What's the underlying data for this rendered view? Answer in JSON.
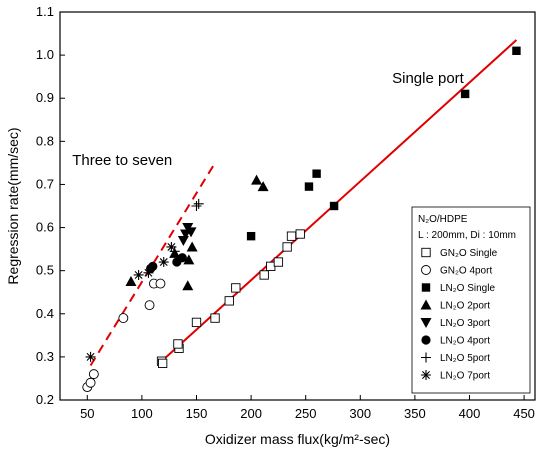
{
  "chart_data": {
    "type": "scatter",
    "xlabel": "Oxidizer mass flux(kg/m²-sec)",
    "ylabel": "Regression rate(mm/sec)",
    "xlim": [
      25,
      460
    ],
    "ylim": [
      0.2,
      1.1
    ],
    "xticks": [
      "50",
      "100",
      "150",
      "200",
      "250",
      "300",
      "350",
      "400",
      "450"
    ],
    "yticks": [
      "0.2",
      "0.3",
      "0.4",
      "0.5",
      "0.6",
      "0.7",
      "0.8",
      "0.9",
      "1.0",
      "1.1"
    ],
    "legend": {
      "title_line1": "N₂O/HDPE",
      "title_line2": "L : 200mm, Di : 10mm",
      "placement": "right"
    },
    "annotations": [
      {
        "text": "Single port",
        "x": 362,
        "y": 0.935
      },
      {
        "text": "Three to seven",
        "x": 82,
        "y": 0.745
      }
    ],
    "fit_lines": [
      {
        "name": "single-port-fit",
        "style": "solid",
        "color": "#e00000",
        "x": [
          118,
          443
        ],
        "y": [
          0.29,
          1.035
        ]
      },
      {
        "name": "three-to-seven-fit",
        "style": "dashed",
        "color": "#e00000",
        "x": [
          53,
          167
        ],
        "y": [
          0.28,
          0.75
        ]
      }
    ],
    "series": [
      {
        "name": "GN₂O Single",
        "marker": "open-square",
        "x": [
          118,
          134,
          150,
          167,
          180,
          186,
          212,
          218,
          225,
          233,
          237,
          245,
          133,
          119
        ],
        "y": [
          0.29,
          0.32,
          0.38,
          0.39,
          0.43,
          0.46,
          0.49,
          0.51,
          0.52,
          0.555,
          0.58,
          0.585,
          0.33,
          0.285
        ]
      },
      {
        "name": "GN₂O 4port",
        "marker": "open-circle",
        "x": [
          50,
          53,
          56,
          83,
          107,
          111,
          117
        ],
        "y": [
          0.23,
          0.24,
          0.26,
          0.39,
          0.42,
          0.47,
          0.47
        ]
      },
      {
        "name": "LN₂O Single",
        "marker": "filled-square",
        "x": [
          200,
          253,
          260,
          276,
          396,
          443
        ],
        "y": [
          0.58,
          0.695,
          0.725,
          0.65,
          0.91,
          1.01
        ]
      },
      {
        "name": "LN₂O 2port",
        "marker": "filled-triangle-up",
        "x": [
          90,
          130,
          142,
          143,
          146,
          205,
          211
        ],
        "y": [
          0.475,
          0.54,
          0.465,
          0.525,
          0.555,
          0.71,
          0.695
        ]
      },
      {
        "name": "LN₂O 3port",
        "marker": "filled-triangle-down",
        "x": [
          138,
          140,
          142,
          145
        ],
        "y": [
          0.57,
          0.585,
          0.6,
          0.59
        ]
      },
      {
        "name": "LN₂O 4port",
        "marker": "filled-circle",
        "x": [
          108,
          110,
          132,
          137
        ],
        "y": [
          0.505,
          0.51,
          0.52,
          0.53
        ]
      },
      {
        "name": "LN₂O 5port",
        "marker": "plus",
        "x": [
          130,
          150,
          152
        ],
        "y": [
          0.545,
          0.65,
          0.655
        ]
      },
      {
        "name": "LN₂O 7port",
        "marker": "asterisk",
        "x": [
          53,
          97,
          106,
          120,
          127
        ],
        "y": [
          0.3,
          0.49,
          0.495,
          0.52,
          0.555
        ]
      }
    ]
  }
}
